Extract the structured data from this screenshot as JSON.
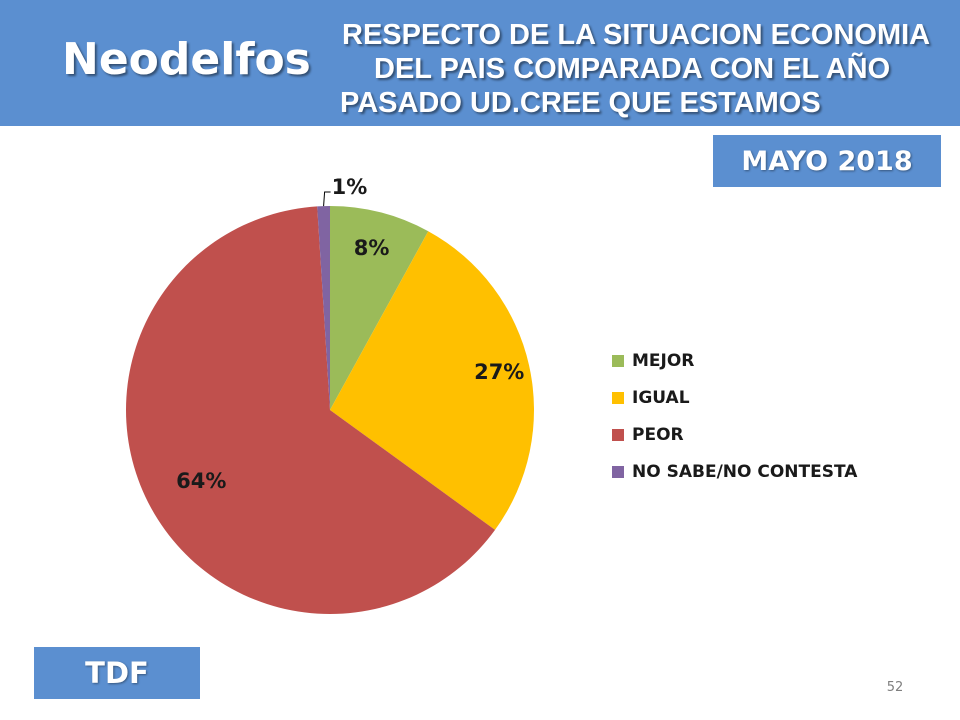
{
  "header": {
    "brand": "Neodelfos",
    "question_line1": "RESPECTO DE LA SITUACION ECONOMIA",
    "question_line2": "DEL PAIS COMPARADA CON EL AÑO",
    "question_line3": "PASADO UD.CREE QUE ESTAMOS"
  },
  "date_label": "MAYO 2018",
  "region_label": "TDF",
  "page_number": "52",
  "colors": {
    "header_bg": "#5b8fd0",
    "mejor": "#9bbb59",
    "igual": "#ffc000",
    "peor": "#c0504d",
    "ns_nc": "#8064a2"
  },
  "chart_data": {
    "type": "pie",
    "categories": [
      "MEJOR",
      "IGUAL",
      "PEOR",
      "NO SABE/NO CONTESTA"
    ],
    "values": [
      8,
      27,
      64,
      1
    ],
    "labels": [
      "8%",
      "27%",
      "64%",
      "1%"
    ],
    "colors": [
      "#9bbb59",
      "#ffc000",
      "#c0504d",
      "#8064a2"
    ],
    "legend_position": "right",
    "title": ""
  }
}
